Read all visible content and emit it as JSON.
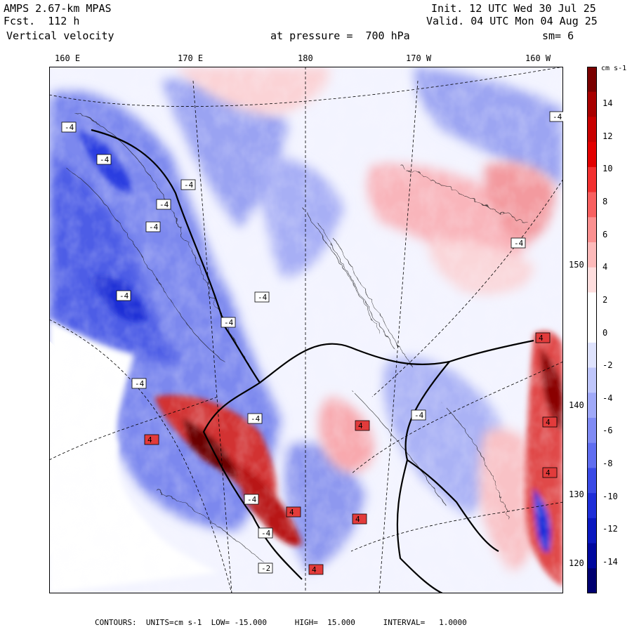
{
  "header": {
    "model": "AMPS 2.67-km MPAS",
    "fcst": "Fcst.  112 h",
    "field": "Vertical velocity",
    "init": "Init. 12 UTC Wed 30 Jul 25",
    "valid": "Valid. 04 UTC Mon 04 Aug 25",
    "pressure": "at pressure =  700 hPa",
    "smoothing": "sm= 6"
  },
  "longitude_labels": [
    "160 E",
    "170 E",
    "180",
    "170 W",
    "160 W"
  ],
  "latitude_labels": [
    "150 W",
    "140 W",
    "130 W",
    "120 W"
  ],
  "colorbar": {
    "units": "cm s-1",
    "ticks": [
      "14",
      "12",
      "10",
      "8",
      "6",
      "4",
      "2",
      "0",
      "-2",
      "-4",
      "-6",
      "-8",
      "-10",
      "-12",
      "-14"
    ],
    "colors": [
      "#7a0000",
      "#a80000",
      "#c80000",
      "#e20000",
      "#f23030",
      "#f86060",
      "#fb9090",
      "#fdbaba",
      "#fedede",
      "#ffffff",
      "#ffffff",
      "#dfe3fd",
      "#bfc6fb",
      "#a0a9f8",
      "#808bf4",
      "#606ef0",
      "#3a4ae6",
      "#1e2ed8",
      "#0a18c0",
      "#00089e",
      "#000070"
    ]
  },
  "map_labels": [
    {
      "text": "-4",
      "kind": "min"
    },
    {
      "text": "-4",
      "kind": "min"
    },
    {
      "text": "-4",
      "kind": "min"
    },
    {
      "text": "-4",
      "kind": "min"
    },
    {
      "text": "-4",
      "kind": "min"
    },
    {
      "text": "-4",
      "kind": "min"
    },
    {
      "text": "-4",
      "kind": "min"
    },
    {
      "text": "-4",
      "kind": "min"
    },
    {
      "text": "-4",
      "kind": "min"
    },
    {
      "text": "-4",
      "kind": "min"
    },
    {
      "text": "-4",
      "kind": "min"
    },
    {
      "text": "-4",
      "kind": "min"
    },
    {
      "text": "-4",
      "kind": "min"
    },
    {
      "text": "-4",
      "kind": "min"
    },
    {
      "text": "-4",
      "kind": "min"
    },
    {
      "text": "4",
      "kind": "max"
    },
    {
      "text": "4",
      "kind": "max"
    },
    {
      "text": "4",
      "kind": "max"
    },
    {
      "text": "4",
      "kind": "max"
    },
    {
      "text": "4",
      "kind": "max"
    },
    {
      "text": "4",
      "kind": "max"
    },
    {
      "text": "4",
      "kind": "max"
    },
    {
      "text": "4",
      "kind": "max"
    },
    {
      "text": "-2",
      "kind": "min"
    }
  ],
  "footer": "CONTOURS:  UNITS=cm s-1  LOW= -15.000      HIGH=  15.000      INTERVAL=   1.0000"
}
